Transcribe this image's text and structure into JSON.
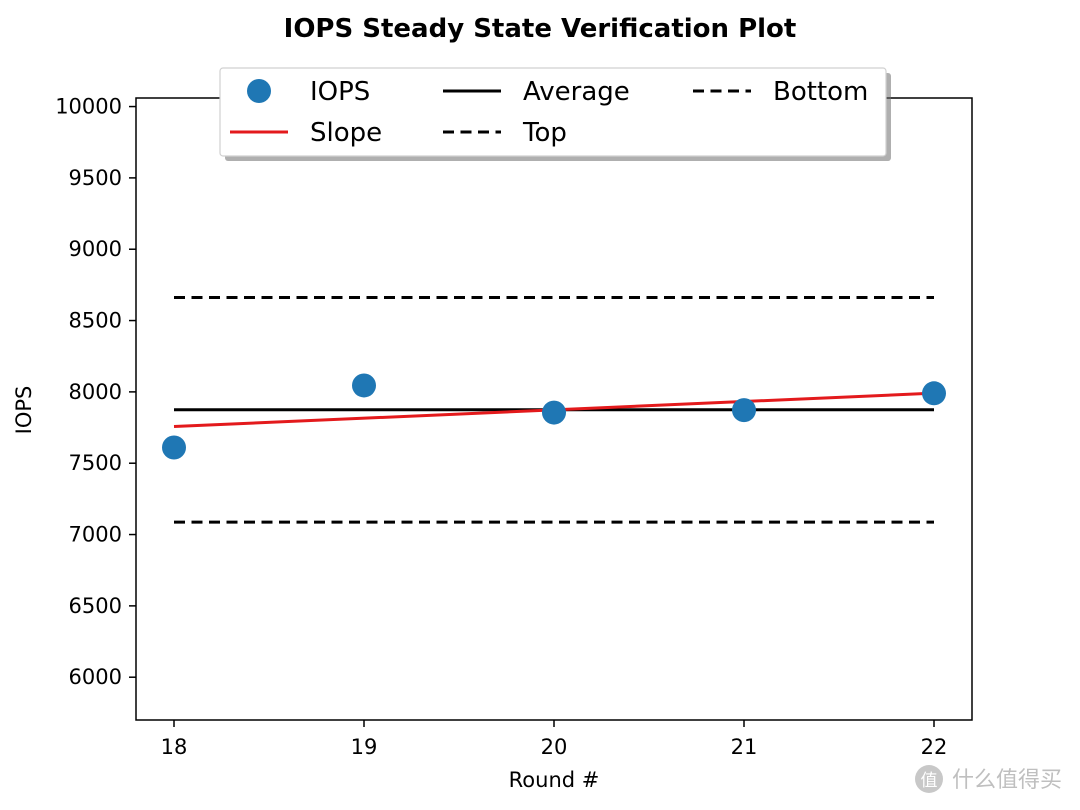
{
  "chart_data": {
    "type": "line",
    "title": "IOPS Steady State Verification Plot",
    "xlabel": "Round #",
    "ylabel": "IOPS",
    "xlim": [
      17.8,
      22.2
    ],
    "ylim": [
      5700,
      10060
    ],
    "xticks": [
      18,
      19,
      20,
      21,
      22
    ],
    "yticks": [
      6000,
      6500,
      7000,
      7500,
      8000,
      8500,
      9000,
      9500,
      10000
    ],
    "grid": false,
    "legend_position": "top",
    "series": [
      {
        "name": "IOPS",
        "kind": "scatter",
        "color": "#1f77b4",
        "x": [
          18,
          19,
          20,
          21,
          22
        ],
        "y": [
          7610,
          8045,
          7855,
          7872,
          7990
        ]
      },
      {
        "name": "Slope",
        "kind": "line",
        "color": "#e31a1c",
        "dash": "solid",
        "x": [
          18,
          22
        ],
        "y": [
          7757,
          7991
        ]
      },
      {
        "name": "Average",
        "kind": "line",
        "color": "#000000",
        "dash": "solid",
        "x": [
          18,
          22
        ],
        "y": [
          7875,
          7875
        ]
      },
      {
        "name": "Top",
        "kind": "line",
        "color": "#000000",
        "dash": "dashed",
        "x": [
          18,
          22
        ],
        "y": [
          8662,
          8662
        ]
      },
      {
        "name": "Bottom",
        "kind": "line",
        "color": "#000000",
        "dash": "dashed",
        "x": [
          18,
          22
        ],
        "y": [
          7087,
          7087
        ]
      }
    ],
    "legend_order": [
      "IOPS",
      "Slope",
      "Average",
      "Top",
      "Bottom"
    ]
  },
  "watermark": {
    "text": "什么值得买",
    "logo_glyph": "值"
  }
}
